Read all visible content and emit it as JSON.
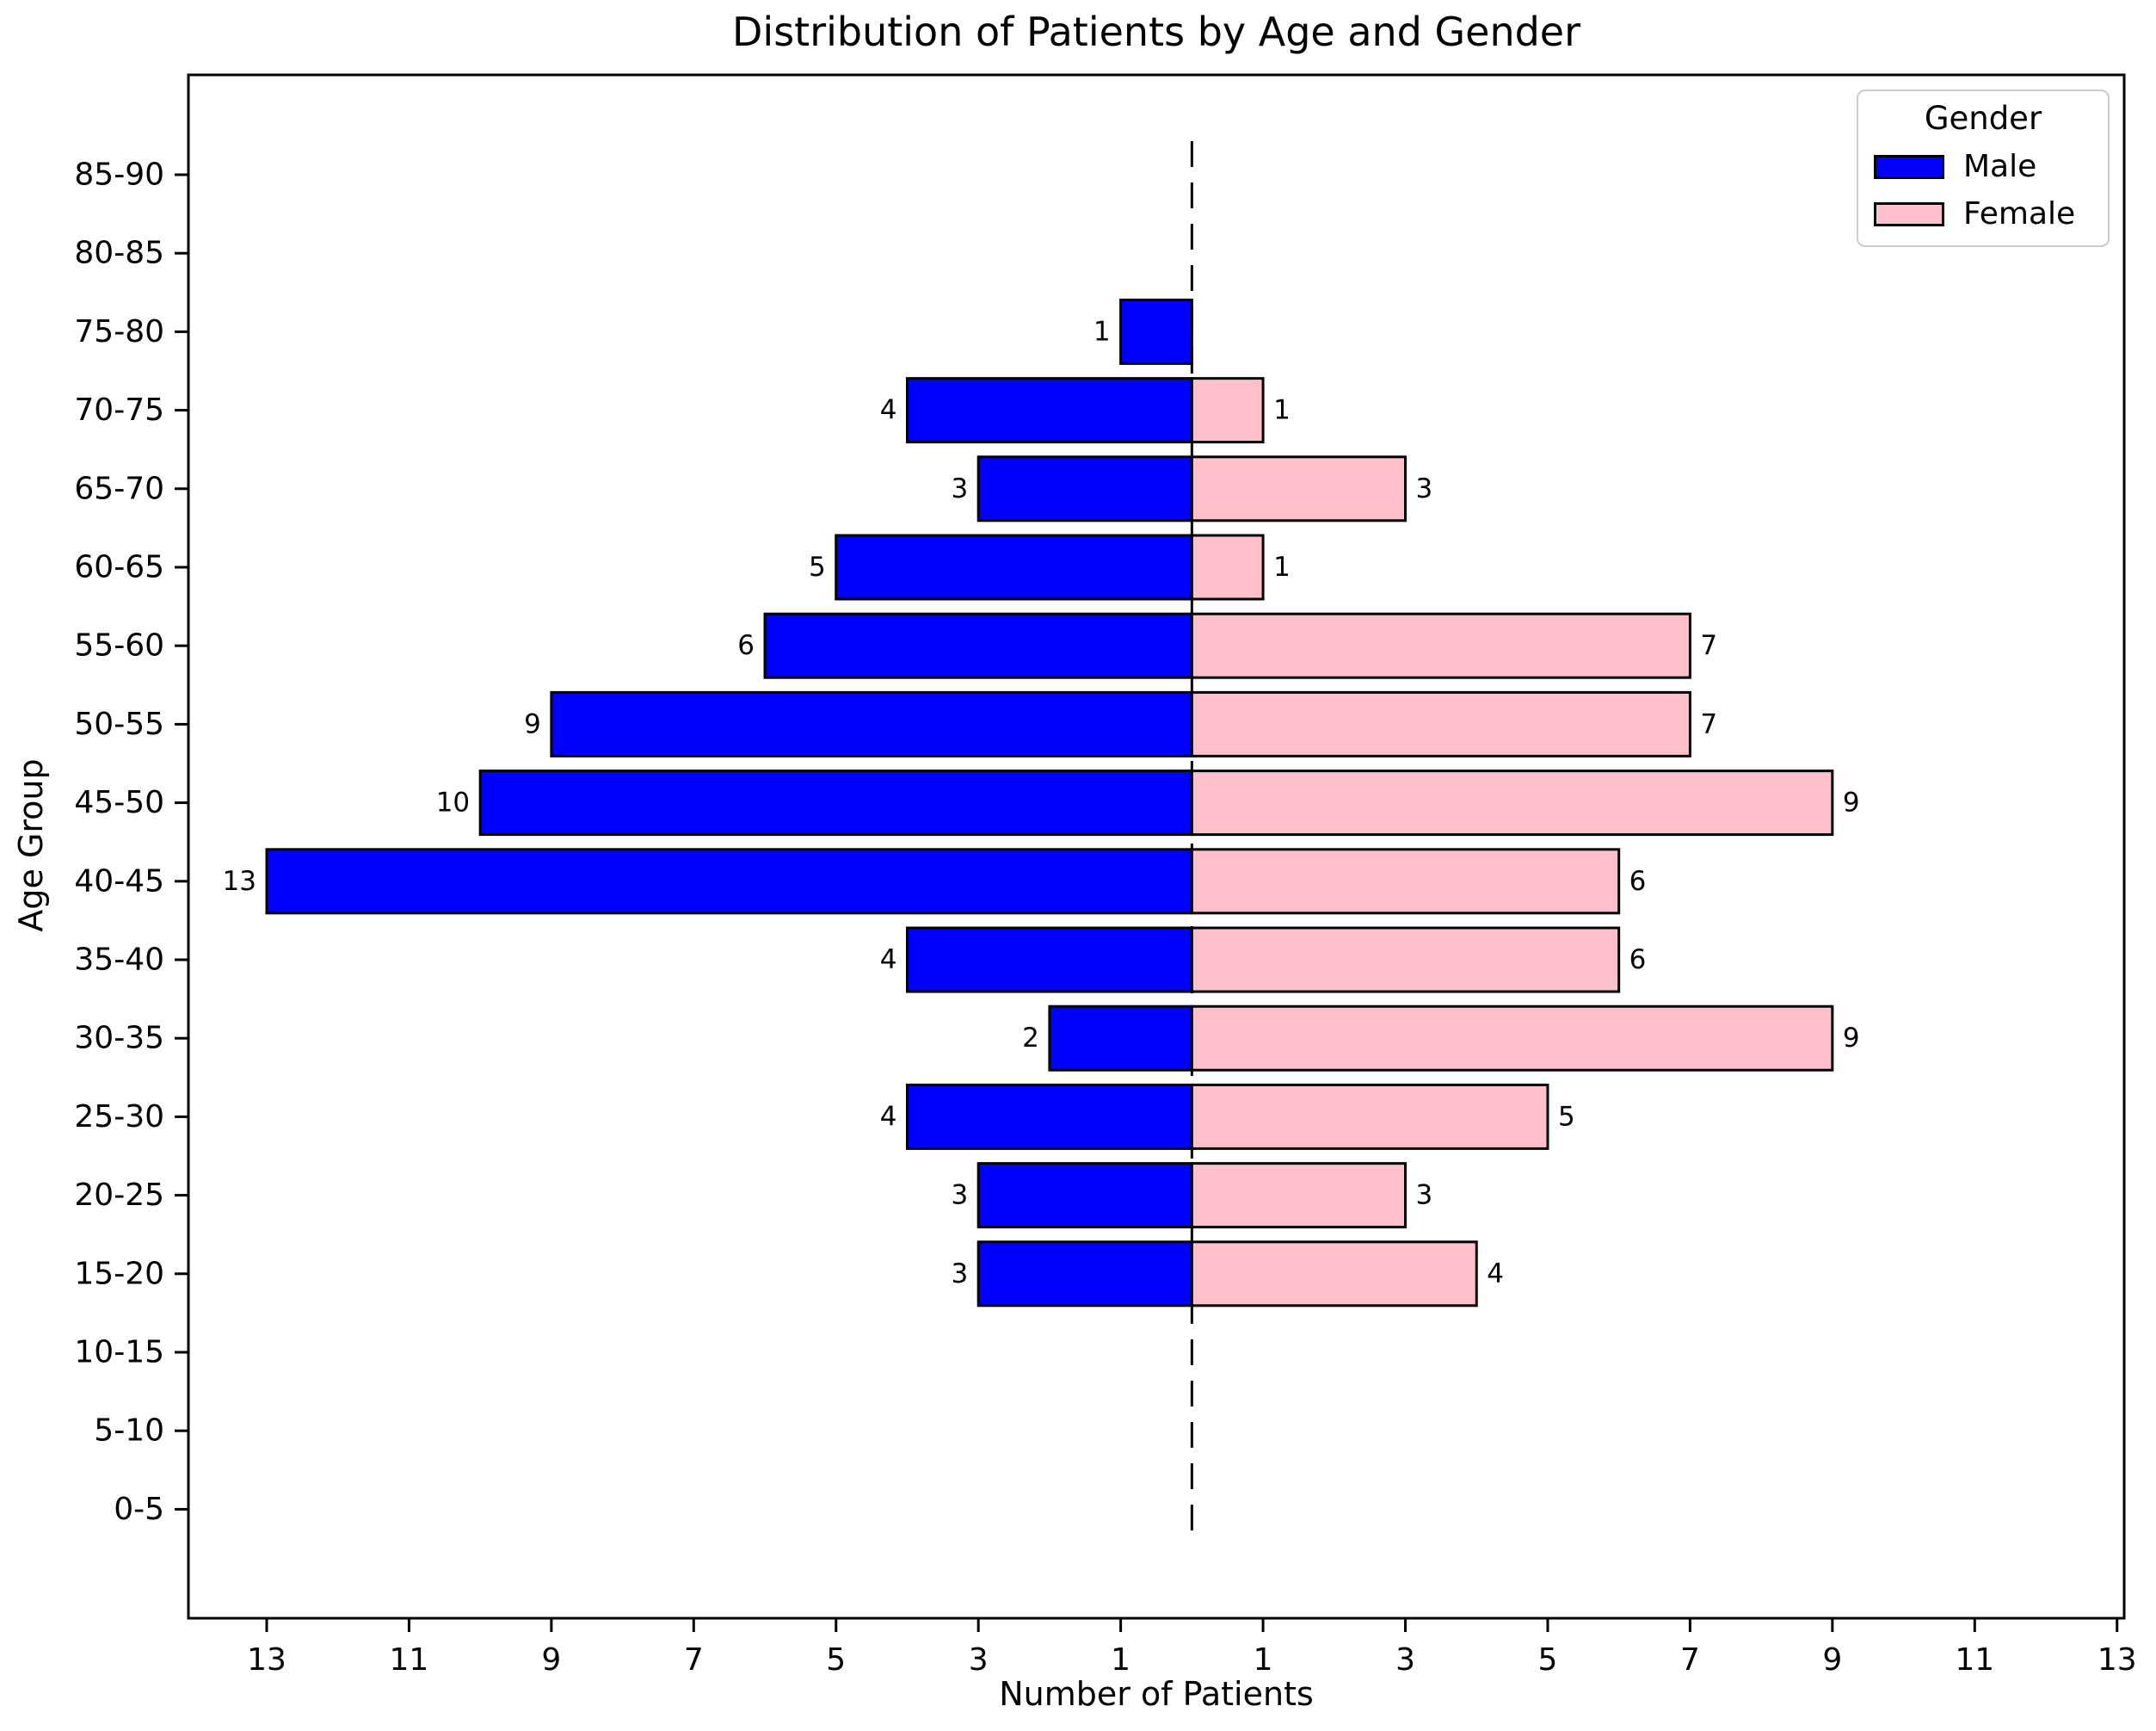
{
  "chart": {
    "title": "Distribution of Patients by Age and Gender",
    "xlabel": "Number of Patients",
    "ylabel": "Age Group"
  },
  "legend": {
    "title": "Gender",
    "entries": [
      {
        "label": "Male",
        "color": "#0000ff"
      },
      {
        "label": "Female",
        "color": "#ffc0cb"
      }
    ]
  },
  "chart_data": {
    "type": "bar",
    "subtype": "population-pyramid",
    "orientation": "horizontal",
    "title": "Distribution of Patients by Age and Gender",
    "xlabel": "Number of Patients",
    "ylabel": "Age Group",
    "categories_top_to_bottom": [
      "85-90",
      "80-85",
      "75-80",
      "70-75",
      "65-70",
      "60-65",
      "55-60",
      "50-55",
      "45-50",
      "40-45",
      "35-40",
      "30-35",
      "25-30",
      "20-25",
      "15-20",
      "10-15",
      "5-10",
      "0-5"
    ],
    "series": [
      {
        "name": "Male",
        "side": "left",
        "color": "#0000ff",
        "values": [
          0,
          0,
          1,
          4,
          3,
          5,
          6,
          9,
          10,
          13,
          4,
          2,
          4,
          3,
          3,
          0,
          0,
          0
        ]
      },
      {
        "name": "Female",
        "side": "right",
        "color": "#ffc0cb",
        "values": [
          0,
          0,
          0,
          1,
          3,
          1,
          7,
          7,
          9,
          6,
          6,
          9,
          5,
          3,
          4,
          0,
          0,
          0
        ]
      }
    ],
    "bar_edge_color": "#000000",
    "value_labels_shown_for_nonzero_bars": true,
    "xtick_values": [
      -13,
      -11,
      -9,
      -7,
      -5,
      -3,
      -1,
      1,
      3,
      5,
      7,
      9,
      11,
      13
    ],
    "xtick_labels": [
      "13",
      "11",
      "9",
      "7",
      "5",
      "3",
      "1",
      "1",
      "3",
      "5",
      "7",
      "9",
      "11",
      "13"
    ],
    "xlim": [
      -14.1,
      13.1
    ],
    "zero_line": {
      "x": 0,
      "style": "dashed",
      "color": "#000000"
    },
    "grid": false,
    "legend_position": "upper right",
    "text_color": "#000000",
    "background_color": "#ffffff"
  }
}
